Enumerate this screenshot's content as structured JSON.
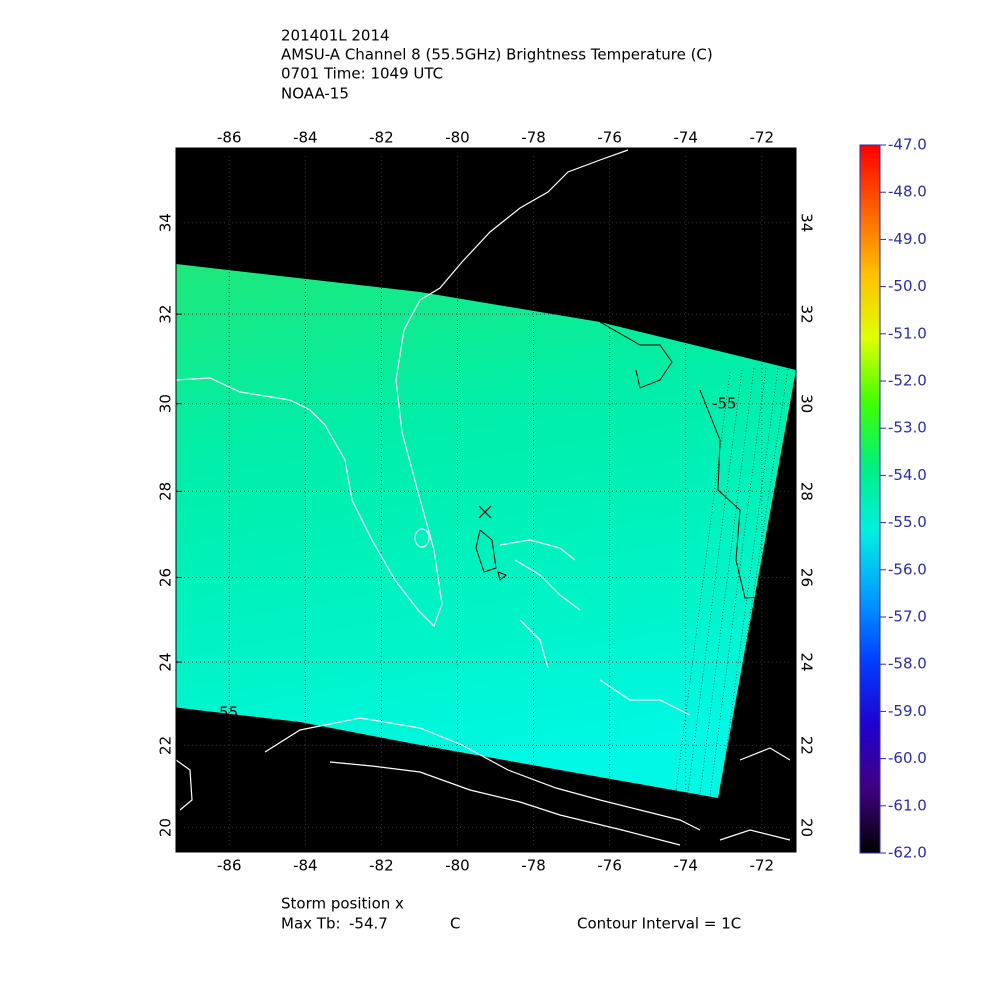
{
  "map": {
    "title_lines": [
      "201401L 2014",
      "AMSU-A Channel 8 (55.5GHz) Brightness Temperature (C)",
      "0701 Time: 1049 UTC",
      "NOAA-15"
    ],
    "xlim": [
      -87.4,
      -71.1
    ],
    "ylim": [
      19.4,
      35.6
    ],
    "xticks": [
      -86,
      -84,
      -82,
      -80,
      -78,
      -76,
      -74,
      -72
    ],
    "yticks": [
      20,
      22,
      24,
      26,
      28,
      30,
      32,
      34
    ],
    "grid": true,
    "contour_labels": [
      "-55",
      "-55"
    ],
    "colorbar": {
      "clim": [
        -62,
        -47
      ],
      "colors": [
        "#ff0000",
        "#ff6000",
        "#ffc000",
        "#e0ff00",
        "#40ff00",
        "#00f080",
        "#00f0e0",
        "#00a0ff",
        "#0040ff",
        "#2000d0",
        "#400080",
        "#000000"
      ],
      "ticks": [
        {
          "value": -47,
          "label": "-47.0"
        },
        {
          "value": -48,
          "label": "-48.0"
        },
        {
          "value": -49,
          "label": "-49.0"
        },
        {
          "value": -50,
          "label": "-50.0"
        },
        {
          "value": -51,
          "label": "-51.0"
        },
        {
          "value": -52,
          "label": "-52.0"
        },
        {
          "value": -53,
          "label": "-53.0"
        },
        {
          "value": -54,
          "label": "-54.0"
        },
        {
          "value": -55,
          "label": "-55.0"
        },
        {
          "value": -56,
          "label": "-56.0"
        },
        {
          "value": -57,
          "label": "-57.0"
        },
        {
          "value": -58,
          "label": "-58.0"
        },
        {
          "value": -59,
          "label": "-59.0"
        },
        {
          "value": -60,
          "label": "-60.0"
        },
        {
          "value": -61,
          "label": "-61.0"
        },
        {
          "value": -62,
          "label": "-62.0"
        }
      ]
    },
    "footer": {
      "storm_position": "Storm position x",
      "max_tb_label": "Max Tb:",
      "max_tb_value": "-54.7",
      "max_tb_unit": "C",
      "contour_interval": "Contour Interval = 1C"
    }
  }
}
